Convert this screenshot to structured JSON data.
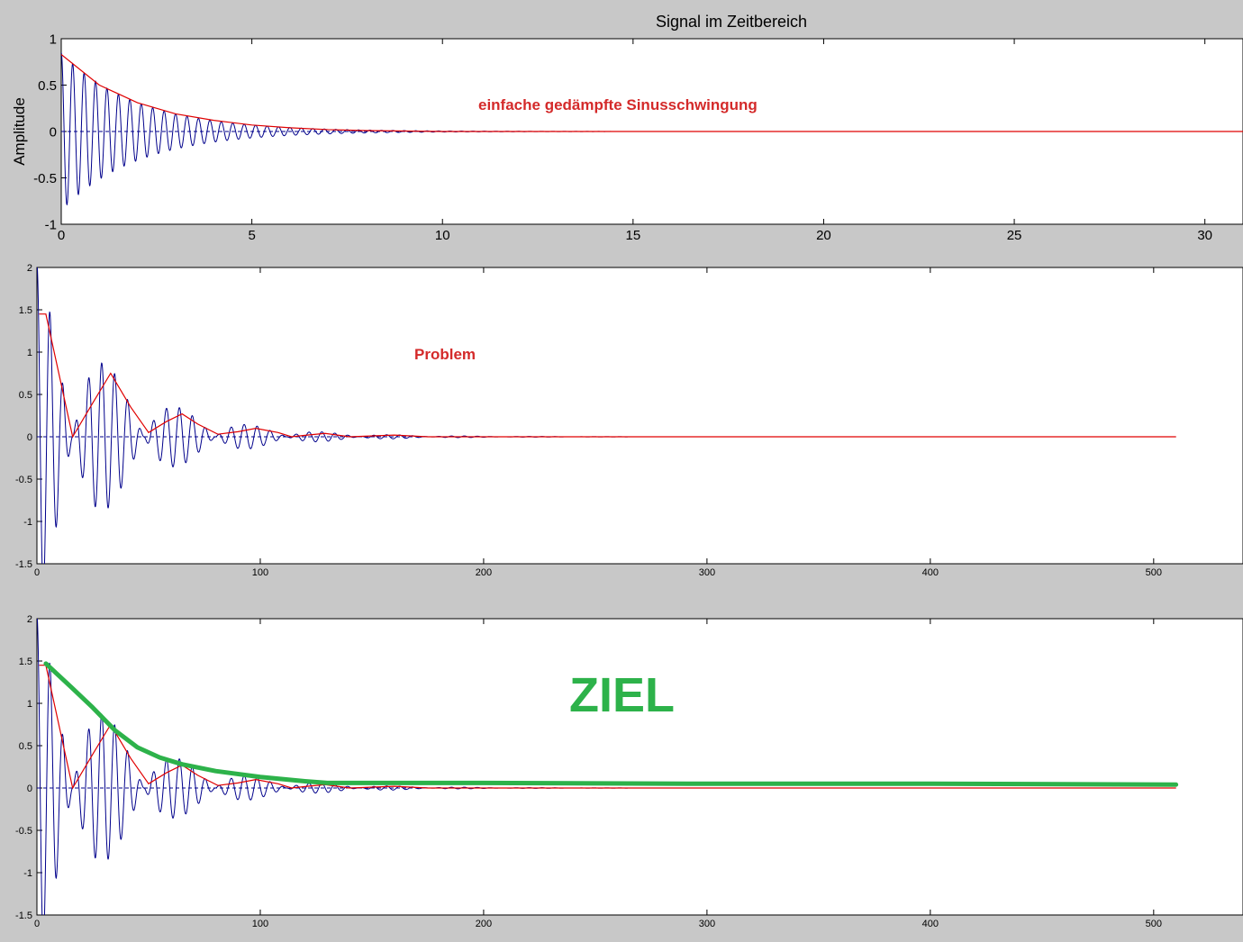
{
  "figure": {
    "background": "#c8c8c8",
    "colors": {
      "signal": "#00008b",
      "envelope": "#e00000",
      "goal": "#2db24a",
      "annotation_red": "#d42a2a"
    }
  },
  "chart_data": [
    {
      "type": "line",
      "title": "Signal im Zeitbereich",
      "xlabel": "",
      "ylabel": "Amplitude",
      "xlim": [
        0,
        31
      ],
      "ylim": [
        -1,
        1
      ],
      "xticks": [
        0,
        5,
        10,
        15,
        20,
        25,
        30
      ],
      "yticks": [
        -1,
        -0.5,
        0,
        0.5,
        1
      ],
      "annotation": "einfache gedämpfte Sinusschwingung",
      "signal": {
        "kind": "damped_sine",
        "amplitude": 0.85,
        "decay": 0.5,
        "period": 0.3,
        "phase_deg": 90,
        "t_end": 31,
        "color": "#00008b"
      },
      "envelope": {
        "color": "#e00000",
        "x": [
          0,
          1,
          2,
          3,
          4,
          5,
          6,
          7,
          8,
          9,
          10,
          31
        ],
        "y": [
          0.83,
          0.5,
          0.31,
          0.19,
          0.12,
          0.07,
          0.04,
          0.02,
          0.01,
          0.005,
          0,
          0
        ]
      },
      "grid": false
    },
    {
      "type": "line",
      "title": "",
      "xlabel": "",
      "ylabel": "",
      "xlim": [
        0,
        540
      ],
      "ylim": [
        -1.5,
        2
      ],
      "xticks": [
        0,
        100,
        200,
        300,
        400,
        500
      ],
      "yticks": [
        -1.5,
        -1,
        -0.5,
        0,
        0.5,
        1,
        1.5,
        2
      ],
      "annotation": "Problem",
      "signal": {
        "kind": "beating",
        "amplitude": 2.05,
        "decay": 0.028,
        "period": 5.8,
        "beat_period": 32,
        "t_end": 510,
        "color": "#00008b"
      },
      "envelope": {
        "color": "#e00000",
        "x": [
          1,
          4,
          16,
          25,
          33,
          42,
          50,
          58,
          65,
          72,
          81,
          90,
          98,
          108,
          114,
          121,
          129,
          140,
          160,
          175,
          510
        ],
        "y": [
          1.45,
          1.45,
          0.0,
          0.4,
          0.75,
          0.35,
          0.05,
          0.18,
          0.27,
          0.15,
          0.03,
          0.06,
          0.1,
          0.05,
          0.0,
          0.02,
          0.04,
          0.0,
          0.02,
          0.0,
          0.0
        ]
      },
      "grid": false
    },
    {
      "type": "line",
      "title": "",
      "xlabel": "",
      "ylabel": "",
      "xlim": [
        0,
        540
      ],
      "ylim": [
        -1.5,
        2
      ],
      "xticks": [
        0,
        100,
        200,
        300,
        400,
        500
      ],
      "yticks": [
        -1.5,
        -1,
        -0.5,
        0,
        0.5,
        1,
        1.5,
        2
      ],
      "annotation": "ZIEL",
      "signal": {
        "kind": "beating",
        "amplitude": 2.05,
        "decay": 0.028,
        "period": 5.8,
        "beat_period": 32,
        "t_end": 510,
        "color": "#00008b"
      },
      "envelope": {
        "color": "#e00000",
        "x": [
          1,
          4,
          16,
          25,
          33,
          42,
          50,
          58,
          65,
          72,
          81,
          90,
          98,
          108,
          114,
          121,
          129,
          140,
          160,
          175,
          510
        ],
        "y": [
          1.45,
          1.45,
          0.0,
          0.4,
          0.75,
          0.35,
          0.05,
          0.18,
          0.27,
          0.15,
          0.03,
          0.06,
          0.1,
          0.05,
          0.0,
          0.02,
          0.04,
          0.0,
          0.02,
          0.0,
          0.0
        ]
      },
      "goal_curve": {
        "color": "#2db24a",
        "x": [
          4,
          15,
          25,
          35,
          45,
          55,
          65,
          80,
          100,
          120,
          130,
          200,
          300,
          400,
          510
        ],
        "y": [
          1.47,
          1.2,
          0.95,
          0.68,
          0.48,
          0.36,
          0.28,
          0.2,
          0.13,
          0.08,
          0.06,
          0.06,
          0.05,
          0.05,
          0.04
        ]
      },
      "grid": false
    }
  ]
}
